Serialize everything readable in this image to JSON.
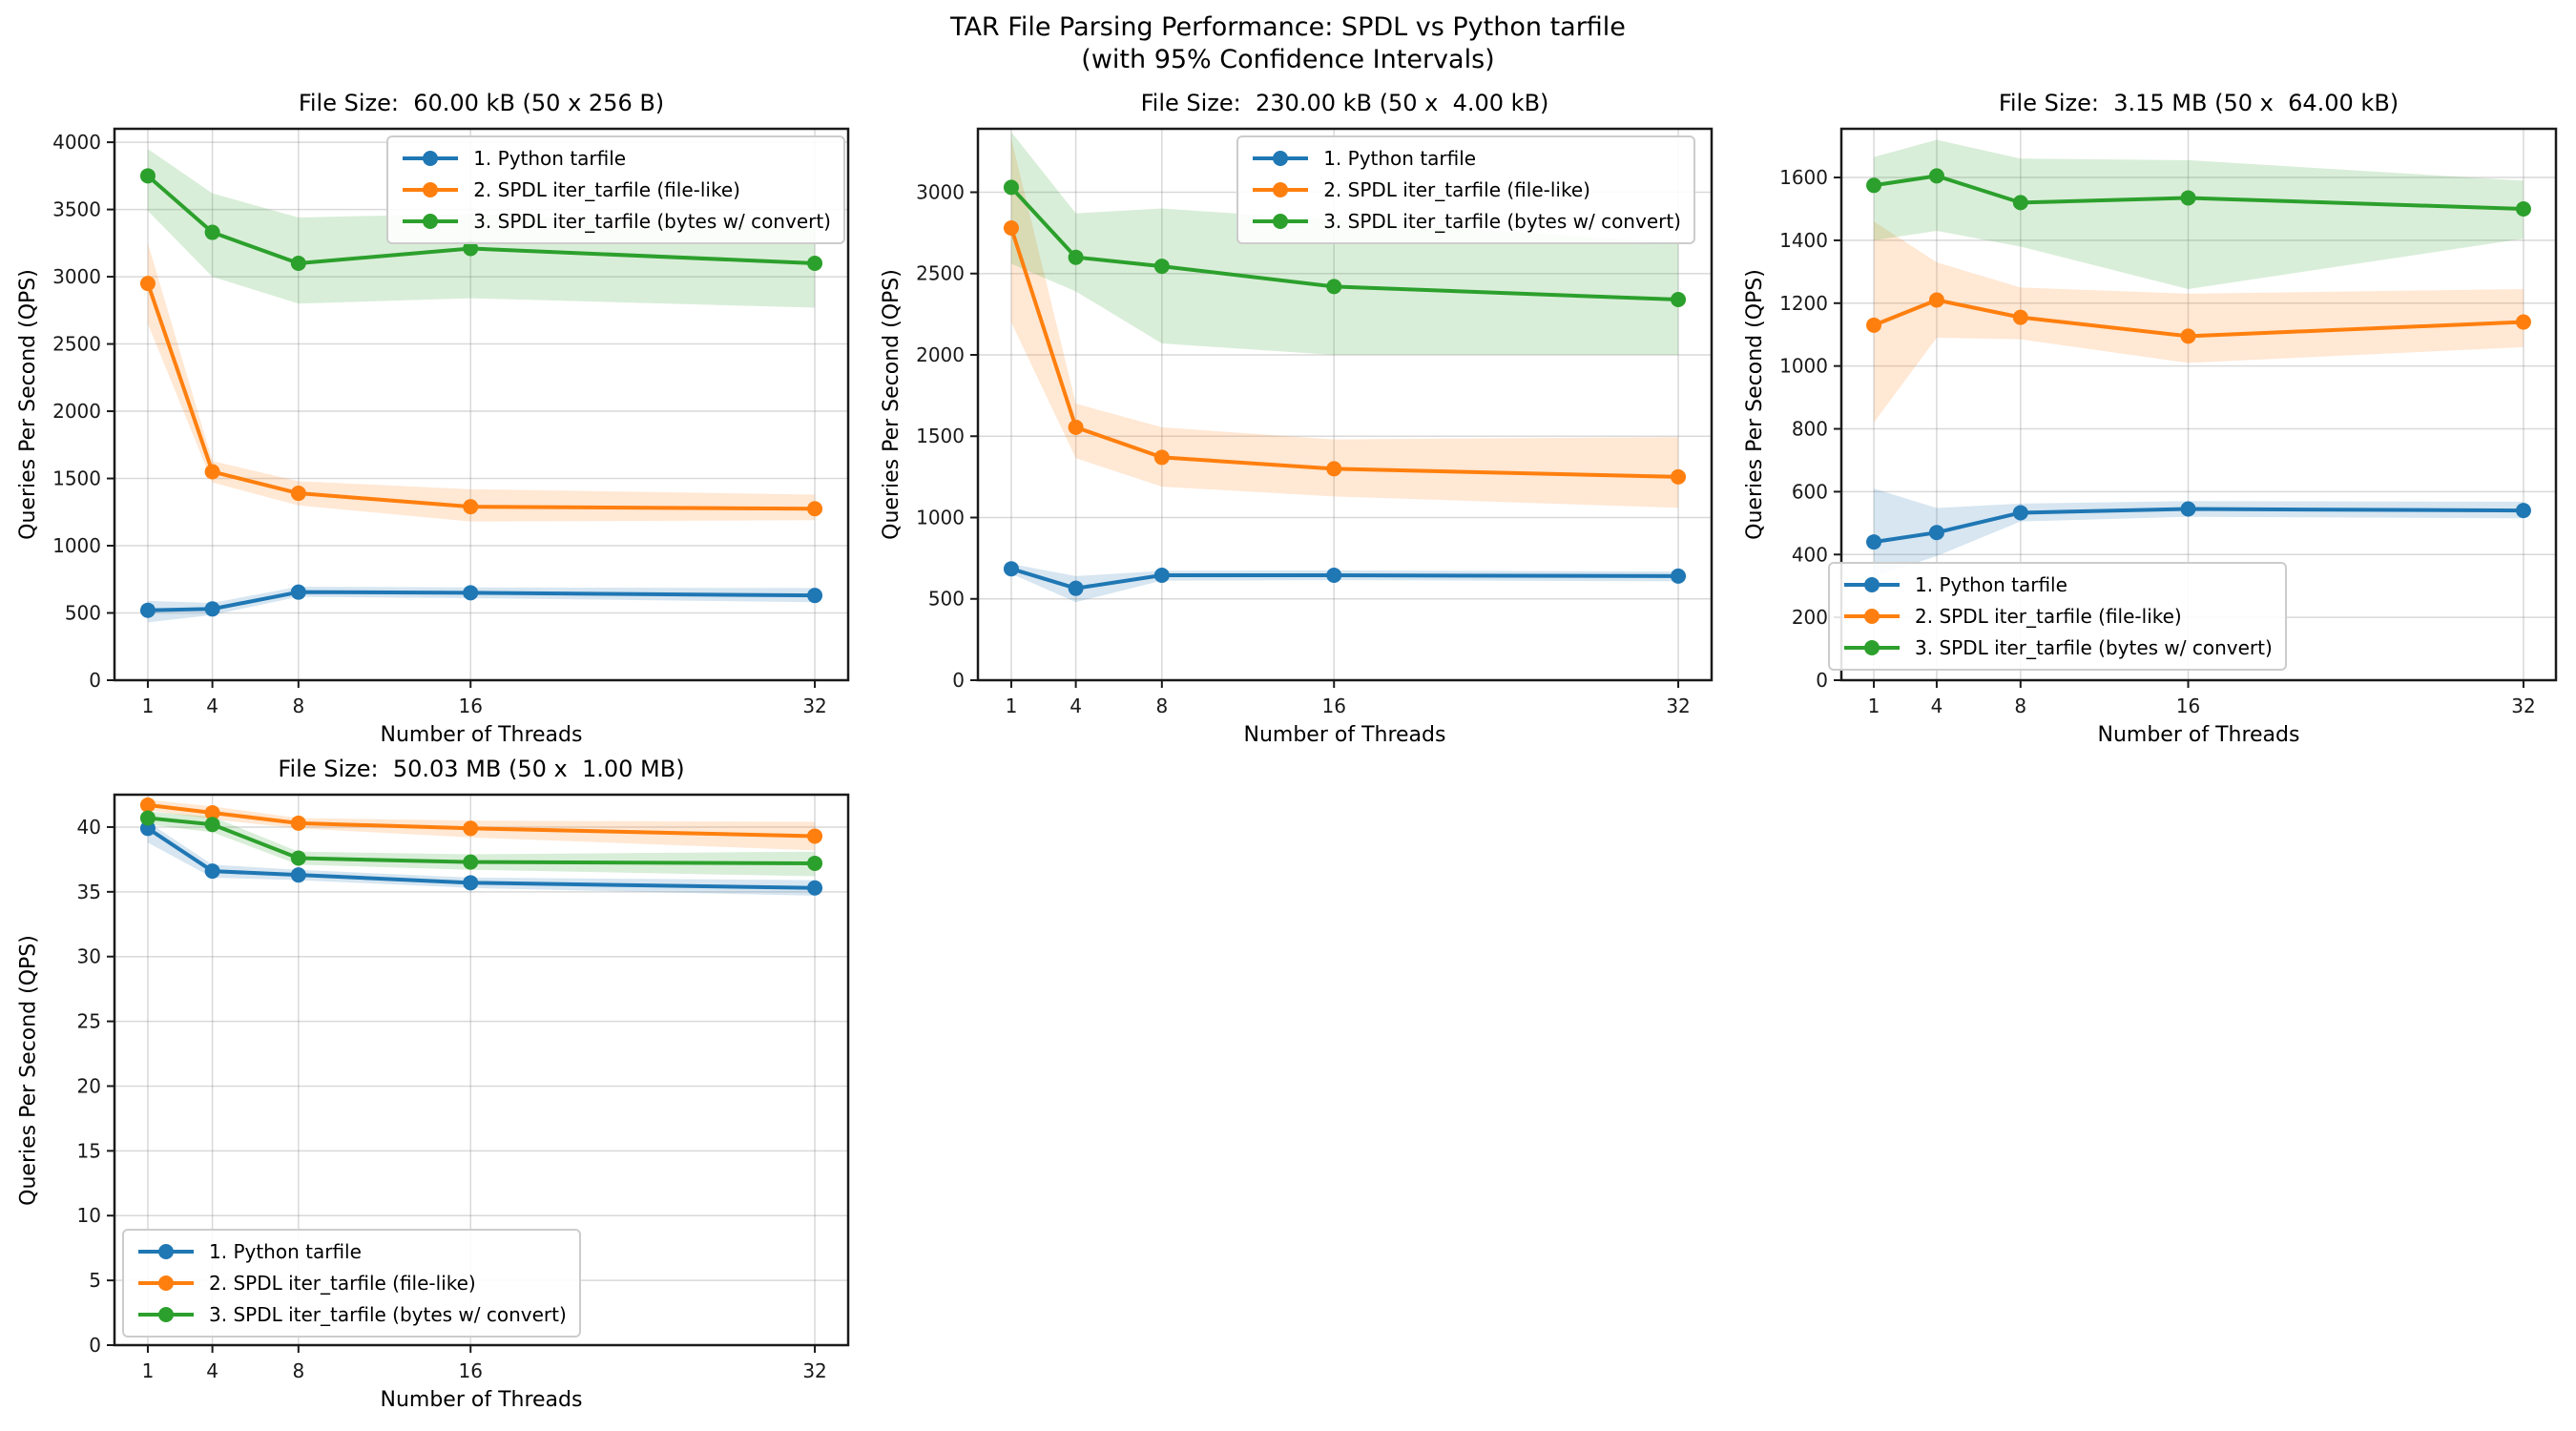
{
  "figure": {
    "title_line1": "TAR File Parsing Performance: SPDL vs Python tarfile",
    "title_line2": "(with 95% Confidence Intervals)",
    "background_color": "#ffffff",
    "grid_color": "#808080",
    "grid_opacity": 0.3,
    "spine_color": "#1a1a1a",
    "tick_label_color": "#191919",
    "ci_alpha": 0.18
  },
  "chart_data": [
    {
      "type": "line",
      "title": "File Size:  60.00 kB (50 x 256 B)",
      "xlabel": "Number of Threads",
      "ylabel": "Queries Per Second (QPS)",
      "x": [
        1,
        4,
        8,
        16,
        32
      ],
      "xticks": [
        1,
        4,
        8,
        16,
        32
      ],
      "yticks": [
        0,
        500,
        1000,
        1500,
        2000,
        2500,
        3000,
        3500,
        4000
      ],
      "xlim": [
        -0.55,
        33.55
      ],
      "ylim": [
        0,
        4100
      ],
      "grid": true,
      "legend_position": "upper right",
      "series": [
        {
          "name": "1. Python tarfile",
          "color": "#1f77b4",
          "values": [
            520,
            530,
            655,
            650,
            630
          ],
          "ci_lower": [
            430,
            485,
            620,
            610,
            580
          ],
          "ci_upper": [
            590,
            575,
            695,
            690,
            685
          ]
        },
        {
          "name": "2. SPDL iter_tarfile (file-like)",
          "color": "#ff7f0e",
          "values": [
            2950,
            1550,
            1390,
            1290,
            1275
          ],
          "ci_lower": [
            2650,
            1470,
            1300,
            1180,
            1190
          ],
          "ci_upper": [
            3250,
            1630,
            1480,
            1420,
            1380
          ]
        },
        {
          "name": "3. SPDL iter_tarfile (bytes w/ convert)",
          "color": "#2ca02c",
          "values": [
            3750,
            3330,
            3100,
            3210,
            3100
          ],
          "ci_lower": [
            3490,
            3000,
            2800,
            2840,
            2770
          ],
          "ci_upper": [
            3950,
            3620,
            3440,
            3470,
            3360
          ]
        }
      ]
    },
    {
      "type": "line",
      "title": "File Size:  230.00 kB (50 x  4.00 kB)",
      "xlabel": "Number of Threads",
      "ylabel": "Queries Per Second (QPS)",
      "x": [
        1,
        4,
        8,
        16,
        32
      ],
      "xticks": [
        1,
        4,
        8,
        16,
        32
      ],
      "yticks": [
        0,
        500,
        1000,
        1500,
        2000,
        2500,
        3000
      ],
      "xlim": [
        -0.55,
        33.55
      ],
      "ylim": [
        0,
        3390
      ],
      "grid": true,
      "legend_position": "upper right",
      "series": [
        {
          "name": "1. Python tarfile",
          "color": "#1f77b4",
          "values": [
            685,
            565,
            645,
            645,
            640
          ],
          "ci_lower": [
            655,
            480,
            612,
            615,
            608
          ],
          "ci_upper": [
            715,
            640,
            672,
            675,
            668
          ]
        },
        {
          "name": "2. SPDL iter_tarfile (file-like)",
          "color": "#ff7f0e",
          "values": [
            2780,
            1555,
            1370,
            1300,
            1250
          ],
          "ci_lower": [
            2200,
            1365,
            1190,
            1130,
            1060
          ],
          "ci_upper": [
            3330,
            1700,
            1555,
            1480,
            1495
          ]
        },
        {
          "name": "3. SPDL iter_tarfile (bytes w/ convert)",
          "color": "#2ca02c",
          "values": [
            3030,
            2600,
            2545,
            2420,
            2340
          ],
          "ci_lower": [
            2560,
            2390,
            2070,
            2000,
            2000
          ],
          "ci_upper": [
            3370,
            2870,
            2900,
            2830,
            2690
          ]
        }
      ]
    },
    {
      "type": "line",
      "title": "File Size:  3.15 MB (50 x  64.00 kB)",
      "xlabel": "Number of Threads",
      "ylabel": "Queries Per Second (QPS)",
      "x": [
        1,
        4,
        8,
        16,
        32
      ],
      "xticks": [
        1,
        4,
        8,
        16,
        32
      ],
      "yticks": [
        0,
        200,
        400,
        600,
        800,
        1000,
        1200,
        1400,
        1600
      ],
      "xlim": [
        -0.55,
        33.55
      ],
      "ylim": [
        0,
        1755
      ],
      "grid": true,
      "legend_position": "lower left",
      "series": [
        {
          "name": "1. Python tarfile",
          "color": "#1f77b4",
          "values": [
            440,
            470,
            533,
            545,
            540
          ],
          "ci_lower": [
            330,
            395,
            505,
            520,
            515
          ],
          "ci_upper": [
            610,
            548,
            562,
            570,
            568
          ]
        },
        {
          "name": "2. SPDL iter_tarfile (file-like)",
          "color": "#ff7f0e",
          "values": [
            1130,
            1210,
            1155,
            1095,
            1140
          ],
          "ci_lower": [
            820,
            1090,
            1085,
            1010,
            1060
          ],
          "ci_upper": [
            1460,
            1330,
            1250,
            1230,
            1245
          ]
        },
        {
          "name": "3. SPDL iter_tarfile (bytes w/ convert)",
          "color": "#2ca02c",
          "values": [
            1575,
            1605,
            1520,
            1535,
            1500
          ],
          "ci_lower": [
            1400,
            1430,
            1380,
            1245,
            1405
          ],
          "ci_upper": [
            1665,
            1720,
            1660,
            1655,
            1590
          ]
        }
      ]
    },
    {
      "type": "line",
      "title": "File Size:  50.03 MB (50 x  1.00 MB)",
      "xlabel": "Number of Threads",
      "ylabel": "Queries Per Second (QPS)",
      "x": [
        1,
        4,
        8,
        16,
        32
      ],
      "xticks": [
        1,
        4,
        8,
        16,
        32
      ],
      "yticks": [
        0,
        5,
        10,
        15,
        20,
        25,
        30,
        35,
        40
      ],
      "xlim": [
        -0.55,
        33.55
      ],
      "ylim": [
        0,
        42.5
      ],
      "grid": true,
      "legend_position": "lower left",
      "series": [
        {
          "name": "1. Python tarfile",
          "color": "#1f77b4",
          "values": [
            39.9,
            36.6,
            36.3,
            35.7,
            35.3
          ],
          "ci_lower": [
            38.8,
            36.1,
            35.9,
            35.3,
            34.7
          ],
          "ci_upper": [
            40.4,
            37.1,
            36.7,
            36.1,
            35.9
          ]
        },
        {
          "name": "2. SPDL iter_tarfile (file-like)",
          "color": "#ff7f0e",
          "values": [
            41.7,
            41.1,
            40.3,
            39.9,
            39.3
          ],
          "ci_lower": [
            41.3,
            40.6,
            39.9,
            39.2,
            38.2
          ],
          "ci_upper": [
            42.1,
            41.6,
            40.7,
            40.5,
            40.4
          ]
        },
        {
          "name": "3. SPDL iter_tarfile (bytes w/ convert)",
          "color": "#2ca02c",
          "values": [
            40.7,
            40.2,
            37.6,
            37.3,
            37.2
          ],
          "ci_lower": [
            40.2,
            39.6,
            37.1,
            36.7,
            36.2
          ],
          "ci_upper": [
            41.2,
            40.8,
            38.1,
            37.9,
            38.1
          ]
        }
      ]
    }
  ]
}
